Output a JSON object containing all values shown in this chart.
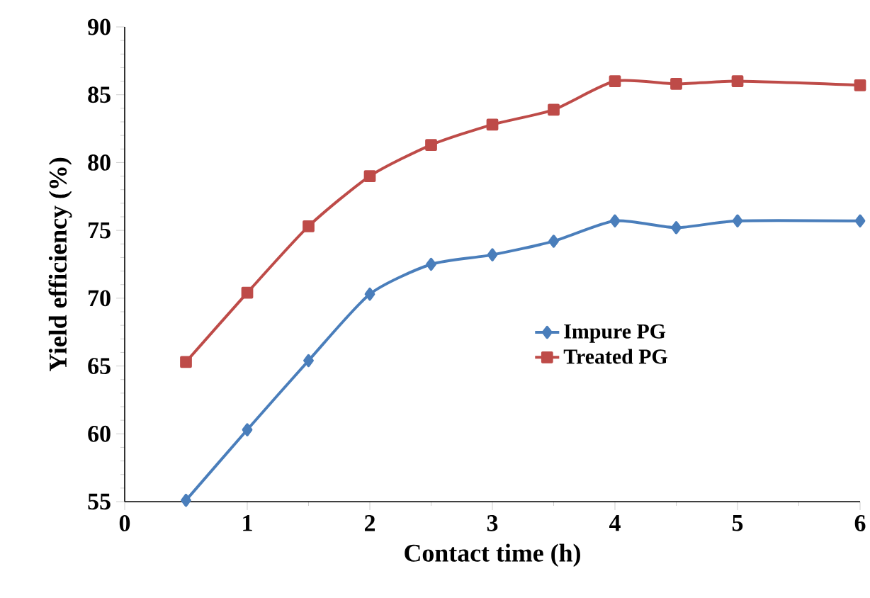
{
  "chart_data": {
    "type": "line",
    "xlabel": "Contact time  (h)",
    "ylabel": "Yield efficiency (%)",
    "x": [
      0.5,
      1,
      1.5,
      2,
      2.5,
      3,
      3.5,
      4,
      4.5,
      5,
      6
    ],
    "series": [
      {
        "name": "Impure PG",
        "color": "#4a7ebb",
        "marker": "diamond",
        "values": [
          55.1,
          60.3,
          65.4,
          70.3,
          72.5,
          73.2,
          74.2,
          75.7,
          75.2,
          75.7,
          75.7
        ]
      },
      {
        "name": "Treated PG",
        "color": "#be4b48",
        "marker": "square",
        "values": [
          65.3,
          70.4,
          75.3,
          79.0,
          81.3,
          82.8,
          83.9,
          86.0,
          85.8,
          86.0,
          85.7
        ]
      }
    ],
    "xlim": [
      0,
      6
    ],
    "xticks": [
      0,
      1,
      2,
      3,
      4,
      5,
      6
    ],
    "ylim": [
      55,
      90
    ],
    "yticks": [
      55,
      60,
      65,
      70,
      75,
      80,
      85,
      90
    ],
    "grid": false,
    "legend": "right",
    "line_style": "solid"
  }
}
